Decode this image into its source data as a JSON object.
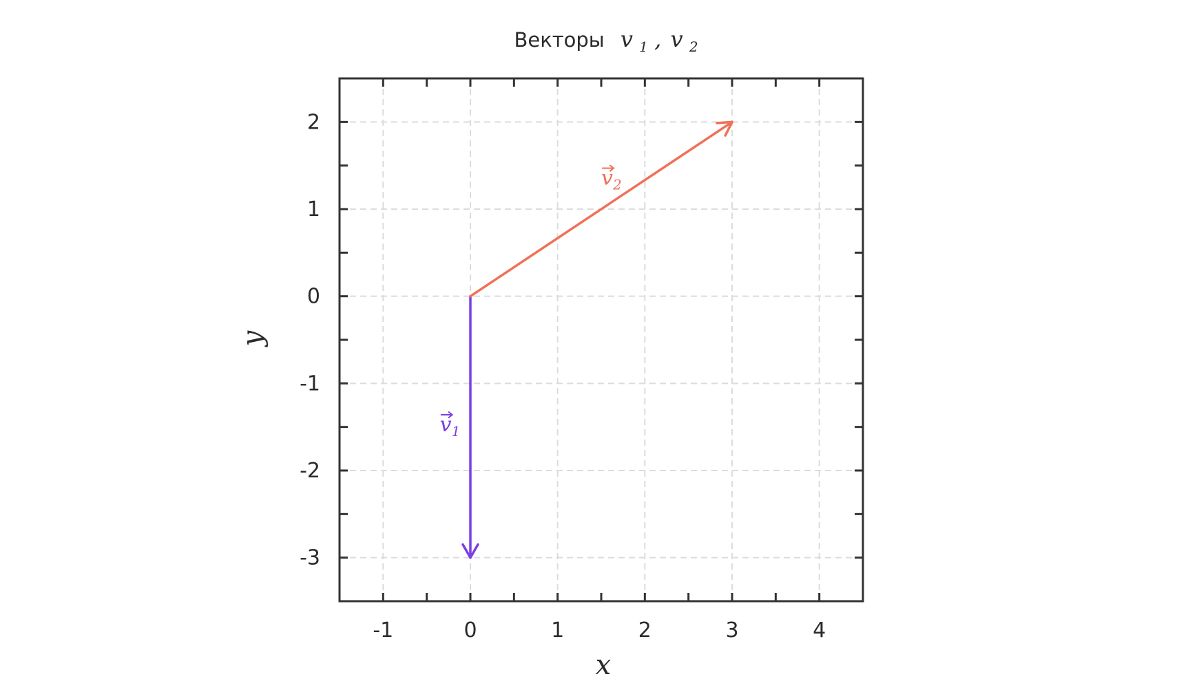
{
  "chart_data": {
    "type": "vector",
    "title": {
      "prefix": "Векторы",
      "v1_base": "v",
      "v1_sub": "1",
      "separator": ",",
      "v2_base": "v",
      "v2_sub": "2"
    },
    "xlabel": "x",
    "ylabel": "y",
    "xlim": [
      -1.5,
      4.5
    ],
    "ylim": [
      -3.5,
      2.5
    ],
    "major_xticks": [
      -1,
      0,
      1,
      2,
      3,
      4
    ],
    "major_yticks": [
      -3,
      -2,
      -1,
      0,
      1,
      2
    ],
    "minor_tick_step": 0.5,
    "grid": true,
    "vectors": [
      {
        "id": "v1",
        "label_base": "v",
        "label_sub": "1",
        "from": [
          0,
          0
        ],
        "to": [
          0,
          -3
        ],
        "color": "#7B3FE4",
        "label_pos": [
          -0.35,
          -1.55
        ]
      },
      {
        "id": "v2",
        "label_base": "v",
        "label_sub": "2",
        "from": [
          0,
          0
        ],
        "to": [
          3,
          2
        ],
        "color": "#F07058",
        "label_pos": [
          1.5,
          1.28
        ]
      }
    ]
  }
}
